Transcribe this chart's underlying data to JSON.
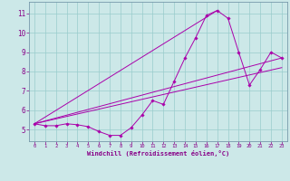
{
  "background_color": "#cce8e8",
  "line_color": "#aa00aa",
  "grid_color": "#99cccc",
  "spine_color": "#7799aa",
  "xlabel": "Windchill (Refroidissement éolien,°C)",
  "tick_color": "#880088",
  "xlim": [
    -0.5,
    23.5
  ],
  "ylim": [
    4.4,
    11.6
  ],
  "xticks": [
    0,
    1,
    2,
    3,
    4,
    5,
    6,
    7,
    8,
    9,
    10,
    11,
    12,
    13,
    14,
    15,
    16,
    17,
    18,
    19,
    20,
    21,
    22,
    23
  ],
  "yticks": [
    5,
    6,
    7,
    8,
    9,
    10,
    11
  ],
  "main_x": [
    0,
    1,
    2,
    3,
    4,
    5,
    6,
    7,
    8,
    9,
    10,
    11,
    12,
    13,
    14,
    15,
    16,
    17,
    18,
    19,
    20,
    21,
    22,
    23
  ],
  "main_y": [
    5.3,
    5.2,
    5.2,
    5.3,
    5.25,
    5.15,
    4.9,
    4.7,
    4.7,
    5.1,
    5.75,
    6.5,
    6.3,
    7.5,
    8.7,
    9.75,
    10.9,
    11.15,
    10.75,
    9.0,
    7.3,
    8.1,
    9.0,
    8.7
  ],
  "line2_x": [
    0,
    23
  ],
  "line2_y": [
    5.3,
    8.7
  ],
  "line3_x": [
    0,
    17
  ],
  "line3_y": [
    5.3,
    11.15
  ],
  "line4_x": [
    0,
    23
  ],
  "line4_y": [
    5.3,
    8.2
  ]
}
